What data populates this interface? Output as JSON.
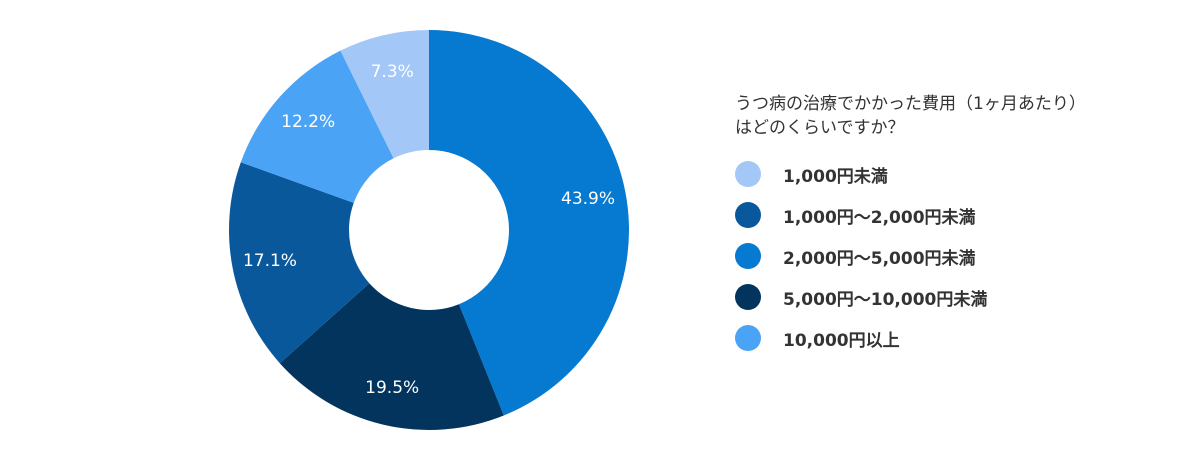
{
  "chart_data": {
    "type": "pie",
    "title_lines": [
      "うつ病の治療でかかった費用（1ヶ月あたり）",
      "はどのくらいですか？"
    ],
    "categories": [
      "1,000円未満",
      "1,000円〜2,000円未満",
      "2,000円〜5,000円未満",
      "5,000円〜10,000円未満",
      "10,000円以上"
    ],
    "values": [
      7.3,
      17.1,
      43.9,
      19.5,
      12.2
    ],
    "value_labels": [
      "7.3%",
      "17.1%",
      "43.9%",
      "19.5%",
      "12.2%"
    ],
    "colors": [
      "#a3c8f8",
      "#0a589c",
      "#0679d1",
      "#02345e",
      "#4ba3f5"
    ],
    "draw_order": [
      2,
      3,
      1,
      4,
      0
    ],
    "legend_position": "right",
    "donut": true
  }
}
